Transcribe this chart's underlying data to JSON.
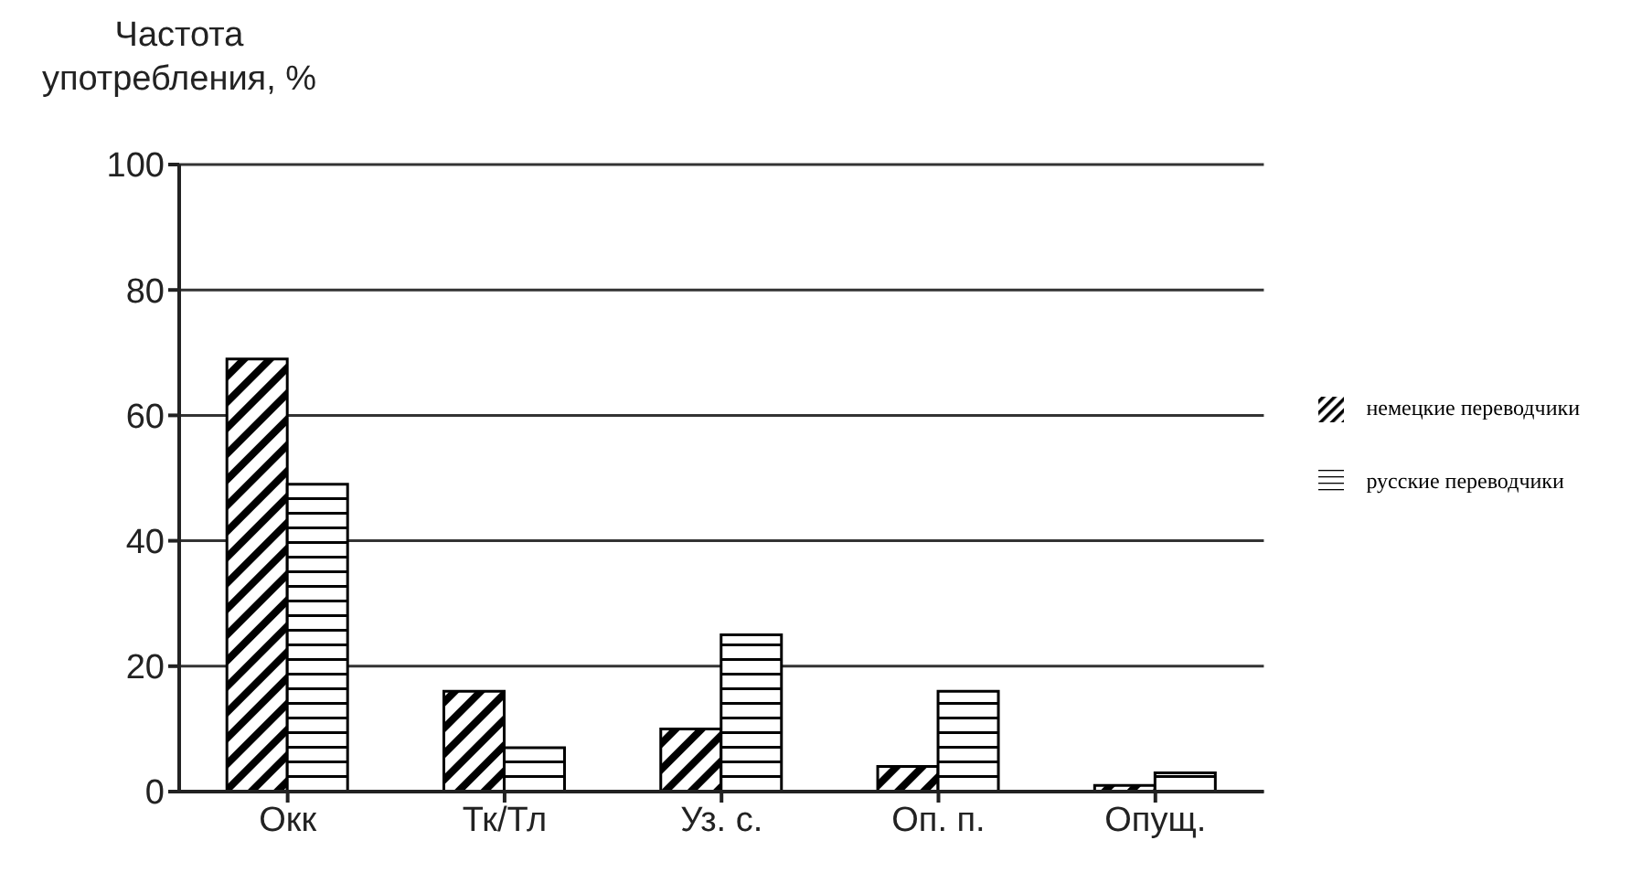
{
  "chart_data": {
    "type": "bar",
    "ylabel": "Частота употребления, %",
    "categories": [
      "Окк",
      "Тк/Тл",
      "Уз. с.",
      "Оп. п.",
      "Опущ."
    ],
    "series": [
      {
        "name": "немецкие переводчики",
        "color": "#000000",
        "values": [
          69,
          16,
          10,
          4,
          1
        ]
      },
      {
        "name": "русские переводчики",
        "color": "#000000",
        "values": [
          49,
          7,
          25,
          16,
          3
        ]
      }
    ],
    "ylim": [
      0,
      100
    ],
    "yticks": [
      0,
      20,
      40,
      60,
      80,
      100
    ],
    "grid": "y",
    "legend": "right"
  }
}
